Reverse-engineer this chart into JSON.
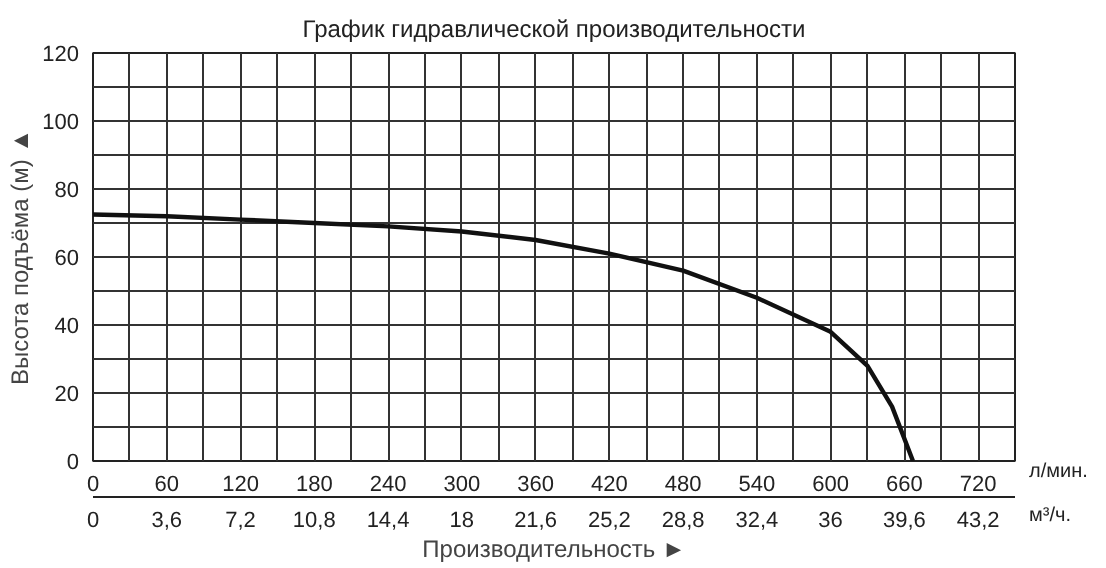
{
  "chart_data": {
    "type": "line",
    "title": "График гидравлической производительности",
    "xlabel": "Производительность ►",
    "ylabel": "Высота подъёма (м) ▲",
    "x": [
      0,
      60,
      120,
      180,
      240,
      300,
      360,
      420,
      480,
      540,
      600,
      630,
      650,
      667
    ],
    "series": [
      {
        "color": "#111111",
        "values": [
          72.5,
          72,
          71,
          70,
          69,
          67.5,
          65,
          61,
          56,
          48,
          38,
          28,
          16,
          0
        ]
      }
    ],
    "xlim": [
      0,
      750
    ],
    "ylim": [
      0,
      120
    ],
    "xticks": [
      0,
      {
        "value": 30,
        "label": null
      },
      60,
      {
        "value": 90,
        "label": null
      },
      120,
      {
        "value": 150,
        "label": null
      },
      180,
      {
        "value": 210,
        "label": null
      },
      240,
      {
        "value": 270,
        "label": null
      },
      300,
      {
        "value": 330,
        "label": null
      },
      360,
      {
        "value": 390,
        "label": null
      },
      420,
      {
        "value": 450,
        "label": null
      },
      480,
      {
        "value": 510,
        "label": null
      },
      540,
      {
        "value": 570,
        "label": null
      },
      600,
      {
        "value": 630,
        "label": null
      },
      660,
      {
        "value": 690,
        "label": null
      },
      720
    ],
    "yticks": [
      0,
      {
        "value": 10,
        "label": null
      },
      20,
      {
        "value": 30,
        "label": null
      },
      40,
      {
        "value": 50,
        "label": null
      },
      60,
      {
        "value": 70,
        "label": null
      },
      80,
      {
        "value": 90,
        "label": null
      },
      100,
      {
        "value": 110,
        "label": null
      },
      120
    ],
    "x2lim": [
      0,
      45
    ],
    "x2ticks": [
      0,
      {
        "value": 3.6,
        "label": "3,6"
      },
      {
        "value": 7.2,
        "label": "7,2"
      },
      {
        "value": 10.8,
        "label": "10,8"
      },
      {
        "value": 14.4,
        "label": "14,4"
      },
      18,
      {
        "value": 21.6,
        "label": "21,6"
      },
      {
        "value": 25.2,
        "label": "25,2"
      },
      {
        "value": 28.8,
        "label": "28,8"
      },
      {
        "value": 32.4,
        "label": "32,4"
      },
      36,
      {
        "value": 39.6,
        "label": "39,6"
      },
      {
        "value": 43.2,
        "label": "43,2"
      }
    ],
    "annotations": [
      "л/мин.",
      "м³/ч."
    ],
    "grid": true,
    "marker": "none",
    "line_style": "solid"
  }
}
